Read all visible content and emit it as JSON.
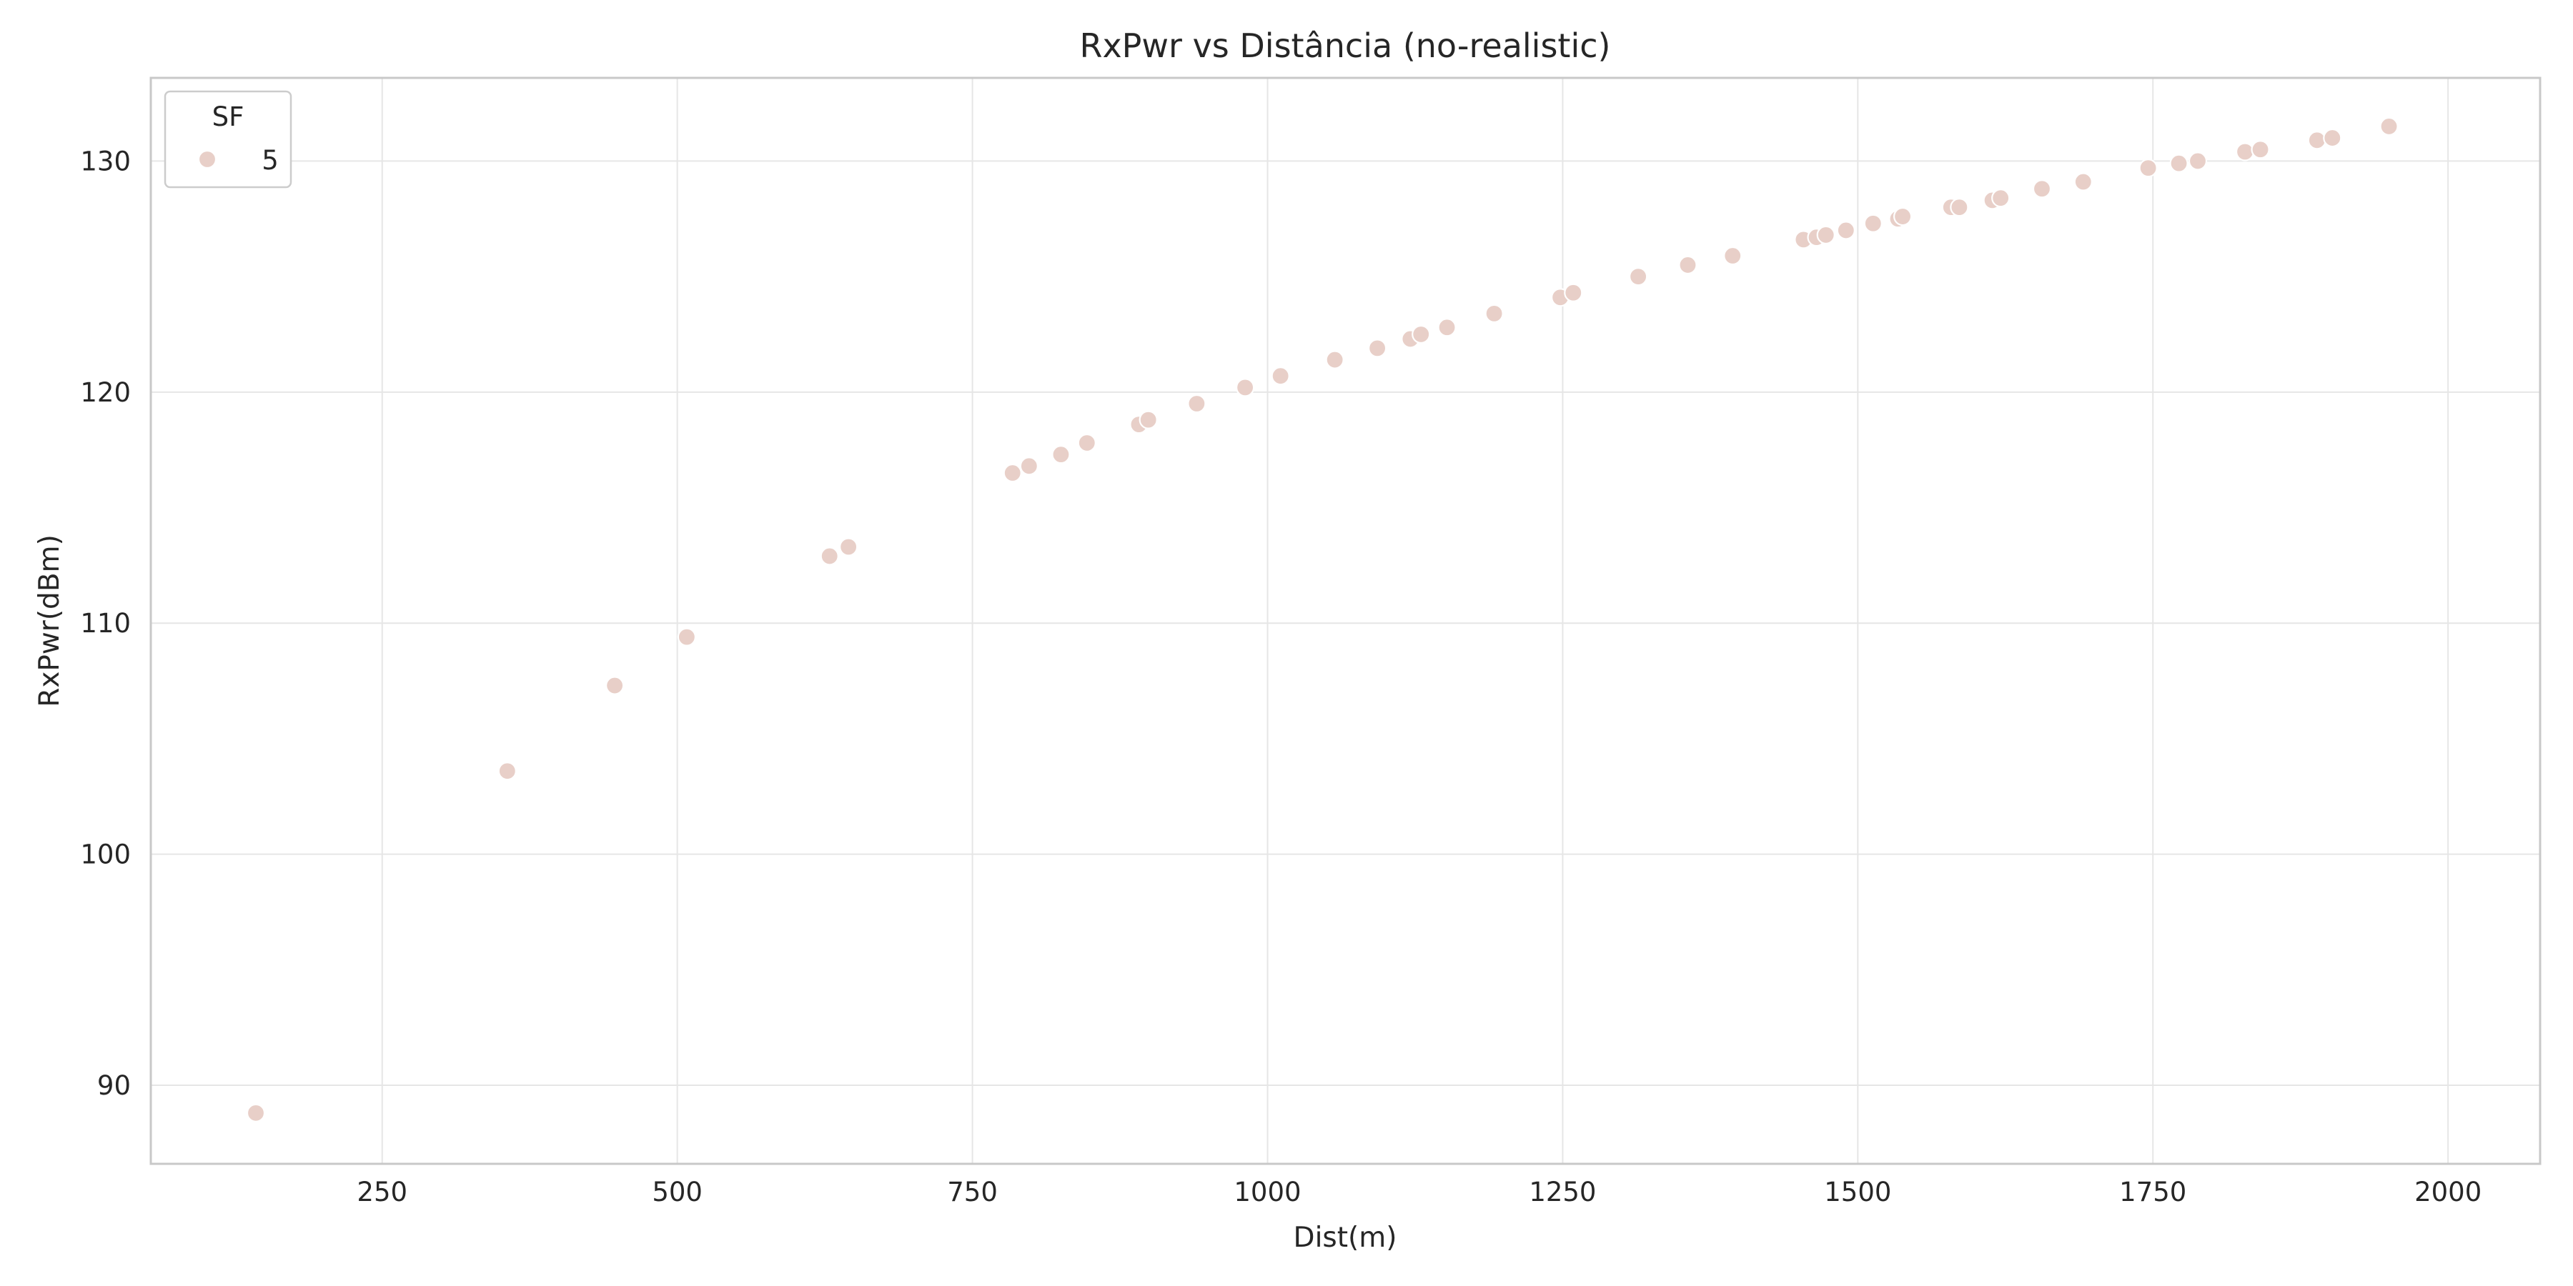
{
  "chart_data": {
    "type": "scatter",
    "title": "RxPwr vs Distância (no-realistic)",
    "xlabel": "Dist(m)",
    "ylabel": "RxPwr(dBm)",
    "xlim": [
      54,
      2078
    ],
    "ylim": [
      86.6,
      133.6
    ],
    "xticks": [
      250,
      500,
      750,
      1000,
      1250,
      1500,
      1750,
      2000
    ],
    "yticks": [
      90,
      100,
      110,
      120,
      130
    ],
    "grid": true,
    "legend": {
      "title": "SF",
      "placement": "top-left"
    },
    "series": [
      {
        "name": "5",
        "color": "#e8cfc8",
        "points": [
          [
            143,
            88.8
          ],
          [
            356,
            103.6
          ],
          [
            447,
            107.3
          ],
          [
            508,
            109.4
          ],
          [
            629,
            112.9
          ],
          [
            645,
            113.3
          ],
          [
            784,
            116.5
          ],
          [
            798,
            116.8
          ],
          [
            825,
            117.3
          ],
          [
            847,
            117.8
          ],
          [
            891,
            118.6
          ],
          [
            899,
            118.8
          ],
          [
            940,
            119.5
          ],
          [
            981,
            120.2
          ],
          [
            1011,
            120.7
          ],
          [
            1057,
            121.4
          ],
          [
            1093,
            121.9
          ],
          [
            1121,
            122.3
          ],
          [
            1130,
            122.5
          ],
          [
            1152,
            122.8
          ],
          [
            1192,
            123.4
          ],
          [
            1248,
            124.1
          ],
          [
            1259,
            124.3
          ],
          [
            1314,
            125.0
          ],
          [
            1356,
            125.5
          ],
          [
            1394,
            125.9
          ],
          [
            1454,
            126.6
          ],
          [
            1465,
            126.7
          ],
          [
            1473,
            126.8
          ],
          [
            1490,
            127.0
          ],
          [
            1513,
            127.3
          ],
          [
            1534,
            127.5
          ],
          [
            1538,
            127.6
          ],
          [
            1579,
            128.0
          ],
          [
            1586,
            128.0
          ],
          [
            1614,
            128.3
          ],
          [
            1621,
            128.4
          ],
          [
            1656,
            128.8
          ],
          [
            1691,
            129.1
          ],
          [
            1746,
            129.7
          ],
          [
            1772,
            129.9
          ],
          [
            1788,
            130.0
          ],
          [
            1828,
            130.4
          ],
          [
            1841,
            130.5
          ],
          [
            1889,
            130.9
          ],
          [
            1902,
            131.0
          ],
          [
            1950,
            131.5
          ]
        ]
      }
    ]
  }
}
